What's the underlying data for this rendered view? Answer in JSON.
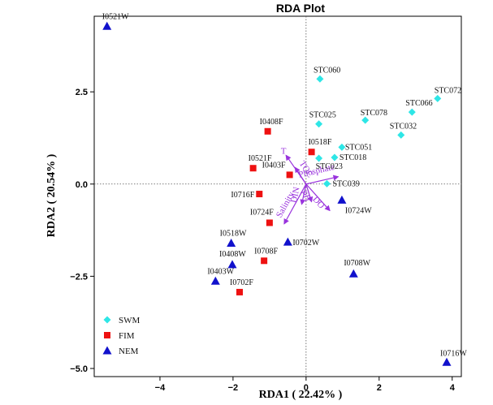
{
  "chart_data": {
    "type": "scatter",
    "title": "RDA Plot",
    "xlabel": "RDA1 ( 22.42% )",
    "ylabel": "RDA2 ( 20.54% )",
    "xlim": [
      -5.8,
      4.25
    ],
    "ylim": [
      -5.22,
      4.55
    ],
    "x_ticks": [
      -4,
      -2,
      0,
      2,
      4
    ],
    "y_ticks": [
      2.5,
      0.0,
      -2.5,
      -5.0
    ],
    "x_tick_labels": [
      "−4",
      "−2",
      "0",
      "2",
      "4"
    ],
    "y_tick_labels": [
      "2.5",
      "0.0",
      "−2.5",
      "−5.0"
    ],
    "grid": false,
    "reference_lines": {
      "x": 0,
      "y": 0,
      "style": "dotted"
    },
    "legend_position": "bottom-left",
    "series": [
      {
        "name": "SWM",
        "marker": "diamond",
        "color": "#2ee6e6",
        "points": [
          {
            "label": "STC060",
            "x": 0.38,
            "y": 2.85
          },
          {
            "label": "STC072",
            "x": 3.6,
            "y": 2.32
          },
          {
            "label": "STC066",
            "x": 2.9,
            "y": 1.95
          },
          {
            "label": "STC078",
            "x": 1.62,
            "y": 1.73
          },
          {
            "label": "STC025",
            "x": 0.35,
            "y": 1.63
          },
          {
            "label": "STC032",
            "x": 2.6,
            "y": 1.33
          },
          {
            "label": "STC051",
            "x": 0.98,
            "y": 1.0
          },
          {
            "label": "STC018",
            "x": 0.78,
            "y": 0.72
          },
          {
            "label": "STC023",
            "x": 0.35,
            "y": 0.7
          },
          {
            "label": "STC039",
            "x": 0.57,
            "y": 0.01
          }
        ]
      },
      {
        "name": "FIM",
        "marker": "square",
        "color": "#ee1111",
        "points": [
          {
            "label": "I0408F",
            "x": -1.05,
            "y": 1.43
          },
          {
            "label": "I0518F",
            "x": 0.15,
            "y": 0.87
          },
          {
            "label": "I0521F",
            "x": -1.45,
            "y": 0.43
          },
          {
            "label": "I0403F",
            "x": -0.45,
            "y": 0.25
          },
          {
            "label": "I0716F",
            "x": -1.28,
            "y": -0.27
          },
          {
            "label": "I0724F",
            "x": -1.0,
            "y": -1.05
          },
          {
            "label": "I0708F",
            "x": -1.15,
            "y": -2.08
          },
          {
            "label": "I0702F",
            "x": -1.82,
            "y": -2.93
          }
        ]
      },
      {
        "name": "NEM",
        "marker": "triangle",
        "color": "#1111cc",
        "points": [
          {
            "label": "I0521W",
            "x": -5.45,
            "y": 4.28
          },
          {
            "label": "I0724W",
            "x": 0.98,
            "y": -0.43
          },
          {
            "label": "I0518W",
            "x": -2.05,
            "y": -1.6
          },
          {
            "label": "I0702W",
            "x": -0.5,
            "y": -1.57
          },
          {
            "label": "I0408W",
            "x": -2.02,
            "y": -2.18
          },
          {
            "label": "I0708W",
            "x": 1.3,
            "y": -2.43
          },
          {
            "label": "I0403W",
            "x": -2.48,
            "y": -2.63
          },
          {
            "label": "I0716W",
            "x": 3.85,
            "y": -4.83
          }
        ]
      }
    ],
    "env_vectors": {
      "color": "#9933dd",
      "vectors": [
        {
          "label": "T",
          "x": -0.55,
          "y": 0.78
        },
        {
          "label": "TOC",
          "x": -0.3,
          "y": 0.45
        },
        {
          "label": "Phosphate",
          "x": 0.88,
          "y": 0.2
        },
        {
          "label": "DIN",
          "x": -0.12,
          "y": -0.55
        },
        {
          "label": "pH",
          "x": 0.15,
          "y": -0.48
        },
        {
          "label": "DO",
          "x": 0.65,
          "y": -0.72
        },
        {
          "label": "Salinity",
          "x": -0.6,
          "y": -1.08
        }
      ]
    }
  }
}
